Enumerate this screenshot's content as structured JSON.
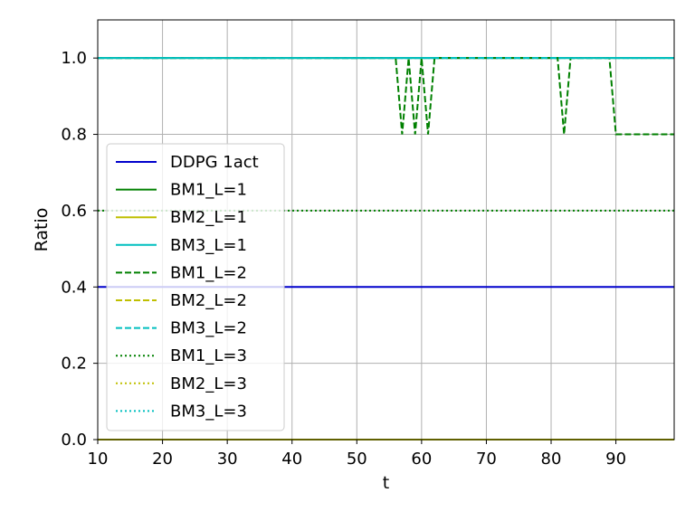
{
  "chart_data": {
    "type": "line",
    "title": "",
    "xlabel": "t",
    "ylabel": "Ratio",
    "xlim": [
      10,
      99
    ],
    "ylim": [
      0.0,
      1.1
    ],
    "xticks": [
      10,
      20,
      30,
      40,
      50,
      60,
      70,
      80,
      90
    ],
    "yticks": [
      0.0,
      0.2,
      0.4,
      0.6,
      0.8,
      1.0
    ],
    "xtick_labels": [
      "10",
      "20",
      "30",
      "40",
      "50",
      "60",
      "70",
      "80",
      "90"
    ],
    "ytick_labels": [
      "0.0",
      "0.2",
      "0.4",
      "0.6",
      "0.8",
      "1.0"
    ],
    "grid": true,
    "legend_position": "center-left",
    "series": [
      {
        "name": "DDPG 1act",
        "color": "#0000cc",
        "style": "solid",
        "points": [
          [
            10,
            0.4
          ],
          [
            99,
            0.4
          ]
        ]
      },
      {
        "name": "BM1_L=1",
        "color": "#008000",
        "style": "solid",
        "points": [
          [
            10,
            1.0
          ],
          [
            99,
            1.0
          ]
        ]
      },
      {
        "name": "BM2_L=1",
        "color": "#bfbf00",
        "style": "solid",
        "points": [
          [
            10,
            0.0
          ],
          [
            99,
            0.0
          ]
        ]
      },
      {
        "name": "BM3_L=1",
        "color": "#00bfbf",
        "style": "solid",
        "points": [
          [
            10,
            1.0
          ],
          [
            99,
            1.0
          ]
        ]
      },
      {
        "name": "BM1_L=2",
        "color": "#008000",
        "style": "dashed",
        "points": [
          [
            10,
            1.0
          ],
          [
            56,
            1.0
          ],
          [
            57,
            0.8
          ],
          [
            58,
            1.0
          ],
          [
            59,
            0.8
          ],
          [
            60,
            1.0
          ],
          [
            61,
            0.8
          ],
          [
            62,
            1.0
          ],
          [
            81,
            1.0
          ],
          [
            82,
            0.8
          ],
          [
            83,
            1.0
          ],
          [
            89,
            1.0
          ],
          [
            90,
            0.8
          ],
          [
            99,
            0.8
          ]
        ]
      },
      {
        "name": "BM2_L=2",
        "color": "#bfbf00",
        "style": "dashed",
        "points": [
          [
            10,
            0.0
          ],
          [
            99,
            0.0
          ]
        ]
      },
      {
        "name": "BM3_L=2",
        "color": "#00bfbf",
        "style": "dashed",
        "points": [
          [
            10,
            1.0
          ],
          [
            99,
            1.0
          ]
        ]
      },
      {
        "name": "BM1_L=3",
        "color": "#008000",
        "style": "dotted",
        "points": [
          [
            10,
            0.6
          ],
          [
            99,
            0.6
          ]
        ]
      },
      {
        "name": "BM2_L=3",
        "color": "#bfbf00",
        "style": "dotted",
        "points": [
          [
            10,
            0.0
          ],
          [
            99,
            0.0
          ]
        ]
      },
      {
        "name": "BM3_L=3",
        "color": "#00bfbf",
        "style": "dotted",
        "points": [
          [
            10,
            1.0
          ],
          [
            99,
            1.0
          ]
        ]
      }
    ]
  }
}
